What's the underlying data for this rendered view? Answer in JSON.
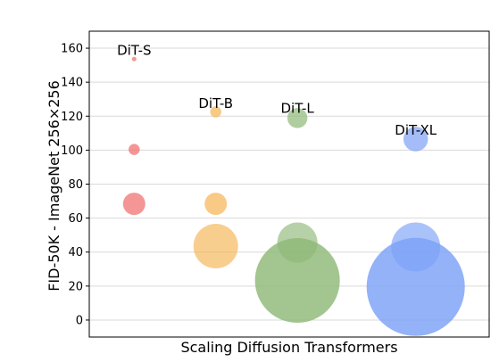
{
  "chart_data": {
    "type": "scatter",
    "title": "",
    "xlabel": "Scaling Diffusion Transformers",
    "ylabel": "FID-50K - ImageNet 256×256",
    "ylim": [
      -10,
      170
    ],
    "xlim": [
      0,
      4.9
    ],
    "yticks": [
      0,
      20,
      40,
      60,
      80,
      100,
      120,
      140,
      160
    ],
    "grid": "horizontal",
    "legend": "none",
    "series": [
      {
        "label": "DiT-S",
        "color": "#f06a6a",
        "x": 0.55,
        "label_y": 156,
        "points": [
          {
            "y": 153.6,
            "size": 2
          },
          {
            "y": 100.4,
            "size": 5
          },
          {
            "y": 68.4,
            "size": 10
          }
        ]
      },
      {
        "label": "DiT-B",
        "color": "#f5b352",
        "x": 1.55,
        "label_y": 125,
        "points": [
          {
            "y": 122.5,
            "size": 5
          },
          {
            "y": 68.4,
            "size": 10
          },
          {
            "y": 43.5,
            "size": 20
          }
        ]
      },
      {
        "label": "DiT-L",
        "color": "#8fb878",
        "x": 2.55,
        "label_y": 122,
        "points": [
          {
            "y": 118.9,
            "size": 9
          },
          {
            "y": 45.6,
            "size": 18
          },
          {
            "y": 23.3,
            "size": 38
          }
        ]
      },
      {
        "label": "DiT-XL",
        "color": "#7da1f7",
        "x": 4.0,
        "label_y": 109,
        "points": [
          {
            "y": 106.5,
            "size": 11
          },
          {
            "y": 43.0,
            "size": 22
          },
          {
            "y": 19.5,
            "size": 44
          }
        ]
      }
    ]
  }
}
